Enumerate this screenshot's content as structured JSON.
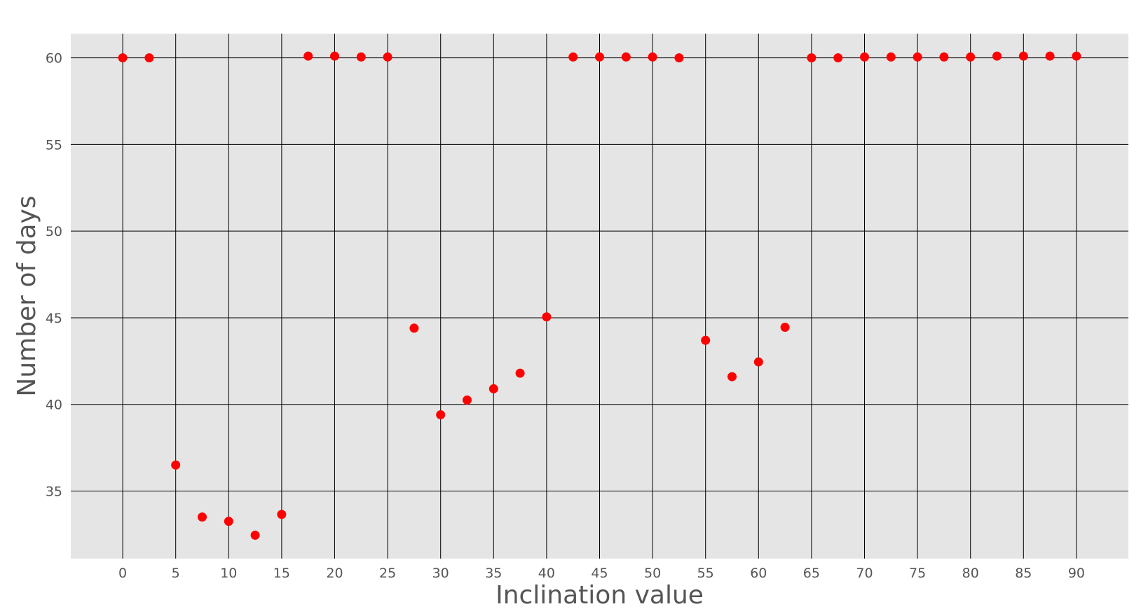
{
  "chart_data": {
    "type": "scatter",
    "title": "",
    "xlabel": "Inclination value",
    "ylabel": "Number of days",
    "xlim": [
      -4.9,
      94.9
    ],
    "ylim": [
      31.1,
      61.4
    ],
    "grid": true,
    "x_ticks": [
      0,
      5,
      10,
      15,
      20,
      25,
      30,
      35,
      40,
      45,
      50,
      55,
      60,
      65,
      70,
      75,
      80,
      85,
      90
    ],
    "y_ticks": [
      35,
      40,
      45,
      50,
      55,
      60
    ],
    "colors": {
      "background": "#e5e5e5",
      "grid": "#000000",
      "marker": "#ff0000",
      "label": "#555555"
    },
    "series": [
      {
        "x": [
          0,
          2.5,
          5,
          7.5,
          10,
          12.5,
          15,
          17.5,
          20,
          22.5,
          25,
          27.5,
          30,
          32.5,
          35,
          37.5,
          40,
          42.5,
          45,
          47.5,
          50,
          52.5,
          55,
          57.5,
          60,
          62.5,
          65,
          67.5,
          70,
          72.5,
          75,
          77.5,
          80,
          82.5,
          85,
          87.5,
          90
        ],
        "y": [
          60.0,
          60.0,
          36.5,
          33.5,
          33.25,
          32.45,
          33.65,
          60.1,
          60.1,
          60.05,
          60.05,
          44.4,
          39.4,
          40.25,
          40.9,
          41.8,
          45.05,
          60.05,
          60.05,
          60.05,
          60.05,
          60.0,
          43.7,
          41.6,
          42.45,
          44.45,
          60.0,
          60.0,
          60.05,
          60.05,
          60.05,
          60.05,
          60.05,
          60.1,
          60.1,
          60.1,
          60.1
        ]
      }
    ]
  }
}
